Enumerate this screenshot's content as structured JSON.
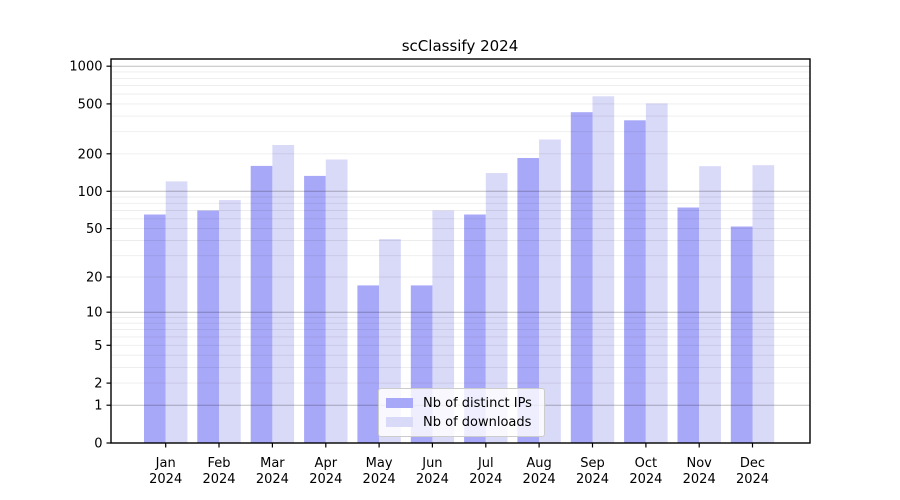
{
  "chart_data": {
    "type": "bar",
    "title": "scClassify 2024",
    "categories": [
      "Jan",
      "Feb",
      "Mar",
      "Apr",
      "May",
      "Jun",
      "Jul",
      "Aug",
      "Sep",
      "Oct",
      "Nov",
      "Dec"
    ],
    "x_year_label": "2024",
    "series": [
      {
        "name": "Nb of distinct IPs",
        "color": "#a8a8f8",
        "values": [
          65,
          70,
          160,
          133,
          17,
          17,
          65,
          185,
          430,
          370,
          74,
          52
        ]
      },
      {
        "name": "Nb of downloads",
        "color": "#d9d9f8",
        "values": [
          120,
          85,
          235,
          180,
          41,
          70,
          140,
          260,
          575,
          505,
          159,
          162
        ]
      }
    ],
    "ylabel": "",
    "xlabel": "",
    "y_scale": "log1p",
    "y_tick_labels": [
      0,
      1,
      2,
      5,
      10,
      20,
      50,
      100,
      200,
      500,
      1000
    ],
    "y_major_gridlines": [
      1,
      10,
      100,
      1000
    ],
    "y_minor_gridlines": [
      2,
      3,
      4,
      5,
      6,
      7,
      8,
      9,
      20,
      30,
      40,
      50,
      60,
      70,
      80,
      90,
      200,
      300,
      400,
      500,
      600,
      700,
      800,
      900
    ],
    "ylim": [
      0,
      1100
    ],
    "grid": true,
    "legend_position": "lower center"
  },
  "colors": {
    "background": "#ffffff",
    "bar_ips": "#a8a8f8",
    "bar_downloads": "#d9d9f8",
    "major_grid": "#bfbfbf",
    "minor_grid": "#ececec",
    "axis_spine": "#000000",
    "tick_text": "#000000",
    "legend_border": "#cccccc"
  }
}
